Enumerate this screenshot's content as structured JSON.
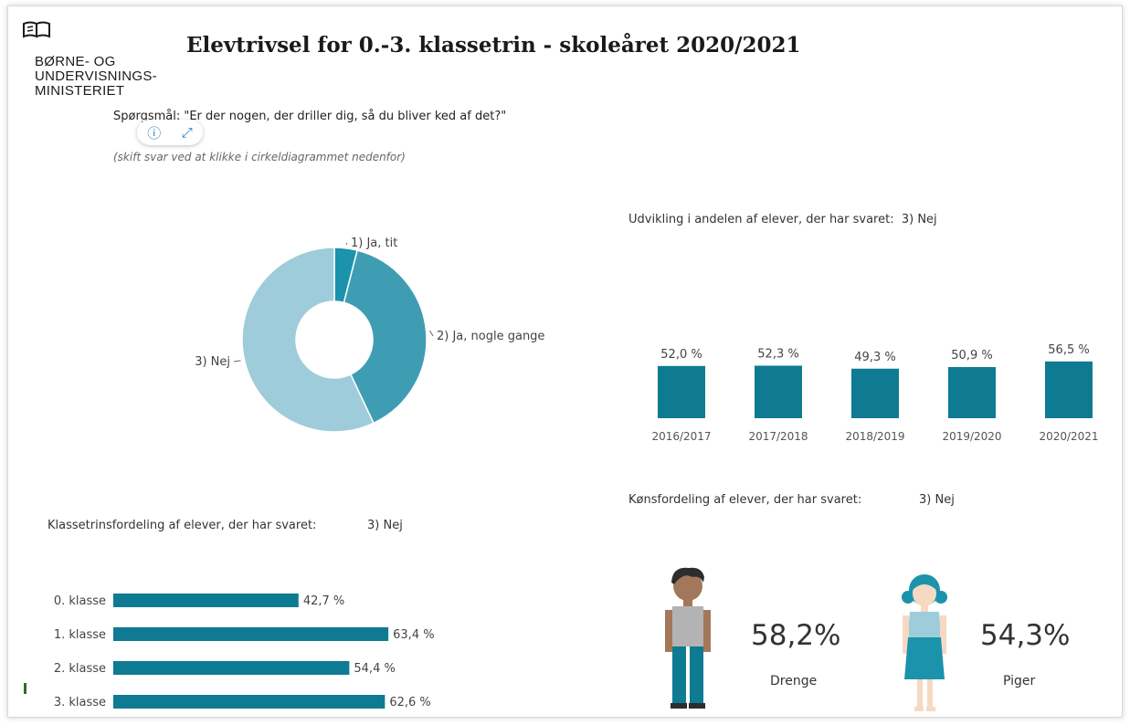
{
  "header": {
    "ministry_line1": "BØRNE- OG",
    "ministry_line2": "UNDERVISNINGS-",
    "ministry_line3": "MINISTERIET",
    "title": "Elevtrivsel for 0.-3. klassetrin - skoleåret 2020/2021"
  },
  "question": "Spørgsmål: \"Er der nogen, der driller dig, så du bliver ked af det?\"",
  "hint": "(skift svar ved at klikke i cirkeldiagrammet nedenfor)",
  "toolbar": {
    "info_icon": "info-icon",
    "expand_icon": "expand-icon"
  },
  "sections": {
    "trend_title": "Udvikling i andelen af elever, der har svaret:  3) Nej",
    "grade_title": "Klassetrinsfordeling af elever, der har svaret:",
    "grade_answer": "3) Nej",
    "gender_title": "Kønsfordeling af elever, der har svaret:",
    "gender_answer": "3) Nej"
  },
  "colors": {
    "bar": "#0f7b92",
    "donut": [
      "#1b93ad",
      "#3f9db3",
      "#9fccda"
    ]
  },
  "chart_data": [
    {
      "type": "pie",
      "labels": [
        "1) Ja, tit",
        "2) Ja, nogle gange",
        "3) Nej"
      ],
      "values": [
        4,
        39,
        57
      ]
    },
    {
      "type": "bar",
      "categories": [
        "2016/2017",
        "2017/2018",
        "2018/2019",
        "2019/2020",
        "2020/2021"
      ],
      "values": [
        52.0,
        52.3,
        49.3,
        50.9,
        56.5
      ],
      "value_labels": [
        "52,0 %",
        "52,3 %",
        "49,3 %",
        "50,9 %",
        "56,5 %"
      ]
    },
    {
      "type": "bar",
      "orientation": "horizontal",
      "categories": [
        "0. klasse",
        "1. klasse",
        "2. klasse",
        "3. klasse"
      ],
      "values": [
        42.7,
        63.4,
        54.4,
        62.6
      ],
      "value_labels": [
        "42,7 %",
        "63,4 %",
        "54,4 %",
        "62,6 %"
      ]
    }
  ],
  "gender": {
    "boys_pct": "58,2%",
    "boys_label": "Drenge",
    "girls_pct": "54,3%",
    "girls_label": "Piger"
  }
}
